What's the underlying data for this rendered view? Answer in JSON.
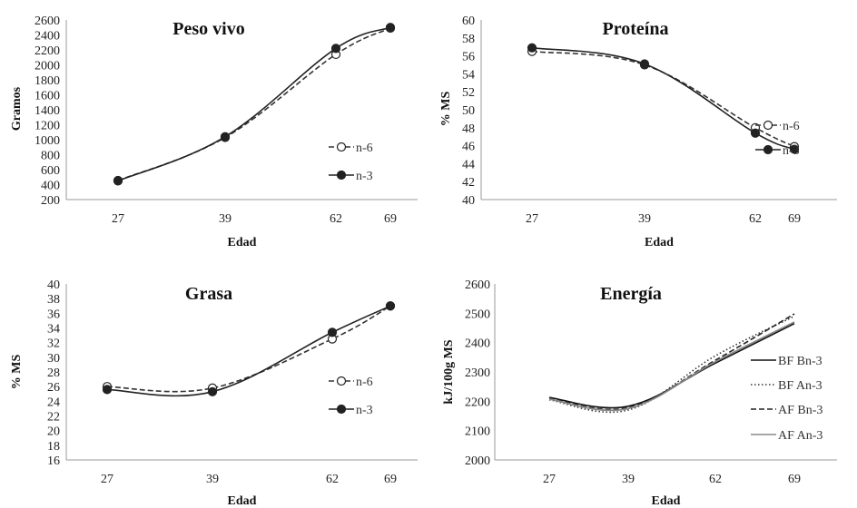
{
  "chart_data": [
    {
      "type": "line",
      "title": "Peso vivo",
      "xlabel": "Edad",
      "ylabel": "Gramos",
      "categories": [
        "27",
        "39",
        "62",
        "69"
      ],
      "ylim": [
        200,
        2600
      ],
      "yticks": [
        200,
        400,
        600,
        800,
        1000,
        1200,
        1400,
        1600,
        1800,
        2000,
        2200,
        2400,
        2600
      ],
      "grid": false,
      "legend": "right",
      "series": [
        {
          "name": "n-6",
          "values": [
            455,
            1030,
            2140,
            2490
          ],
          "style": "dashed",
          "marker": "open-circle",
          "color": "#333333"
        },
        {
          "name": "n-3",
          "values": [
            450,
            1040,
            2220,
            2500
          ],
          "style": "solid",
          "marker": "filled-circle",
          "color": "#222222"
        }
      ]
    },
    {
      "type": "line",
      "title": "Proteína",
      "xlabel": "Edad",
      "ylabel": "% MS",
      "categories": [
        "27",
        "39",
        "62",
        "69"
      ],
      "ylim": [
        40,
        60
      ],
      "yticks": [
        40,
        42,
        44,
        46,
        48,
        50,
        52,
        54,
        56,
        58,
        60
      ],
      "grid": false,
      "legend": "right",
      "series": [
        {
          "name": "n-6",
          "values": [
            56.5,
            55.0,
            48.0,
            45.9
          ],
          "style": "dashed",
          "marker": "open-circle",
          "color": "#333333"
        },
        {
          "name": "n-3",
          "values": [
            56.9,
            55.1,
            47.4,
            45.6
          ],
          "style": "solid",
          "marker": "filled-circle",
          "color": "#222222"
        }
      ]
    },
    {
      "type": "line",
      "title": "Grasa",
      "xlabel": "Edad",
      "ylabel": "% MS",
      "categories": [
        "27",
        "39",
        "62",
        "69"
      ],
      "ylim": [
        16,
        40
      ],
      "yticks": [
        16,
        18,
        20,
        22,
        24,
        26,
        28,
        30,
        32,
        34,
        36,
        38,
        40
      ],
      "grid": false,
      "legend": "right",
      "series": [
        {
          "name": "n-6",
          "values": [
            26.0,
            25.8,
            32.5,
            37.0
          ],
          "style": "dashed",
          "marker": "open-circle",
          "color": "#333333"
        },
        {
          "name": "n-3",
          "values": [
            25.6,
            25.3,
            33.4,
            37.0
          ],
          "style": "solid",
          "marker": "filled-circle",
          "color": "#222222"
        }
      ]
    },
    {
      "type": "line",
      "title": "Energía",
      "xlabel": "Edad",
      "ylabel": "kJ/100g MS",
      "categories": [
        "27",
        "39",
        "62",
        "69"
      ],
      "ylim": [
        2000,
        2600
      ],
      "yticks": [
        2000,
        2100,
        2200,
        2300,
        2400,
        2500,
        2600
      ],
      "grid": false,
      "legend": "right",
      "series": [
        {
          "name": "BF Bn-3",
          "values": [
            2213,
            2183,
            2330,
            2465
          ],
          "style": "solid",
          "marker": "none",
          "color": "#111111"
        },
        {
          "name": "BF An-3",
          "values": [
            2205,
            2170,
            2355,
            2490
          ],
          "style": "dotted",
          "marker": "none",
          "color": "#333333"
        },
        {
          "name": "AF Bn-3",
          "values": [
            2210,
            2178,
            2340,
            2498
          ],
          "style": "dashed",
          "marker": "none",
          "color": "#222222"
        },
        {
          "name": "AF An-3",
          "values": [
            2207,
            2175,
            2335,
            2470
          ],
          "style": "solid",
          "marker": "none",
          "color": "#888888"
        }
      ]
    }
  ]
}
